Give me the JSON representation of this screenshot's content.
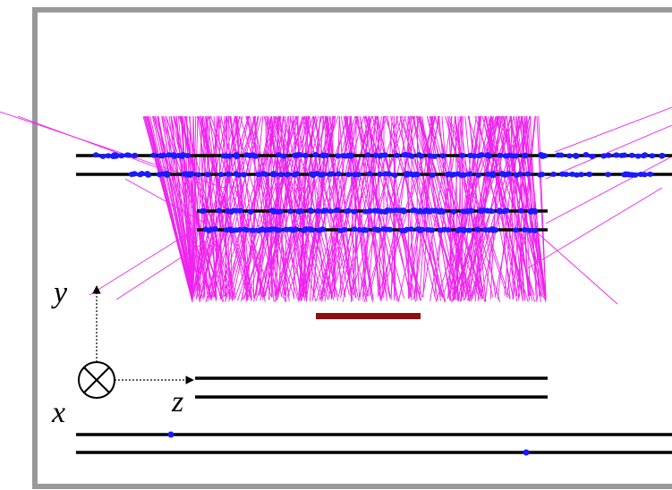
{
  "axes": {
    "y": "y",
    "x": "x",
    "z": "z"
  }
}
